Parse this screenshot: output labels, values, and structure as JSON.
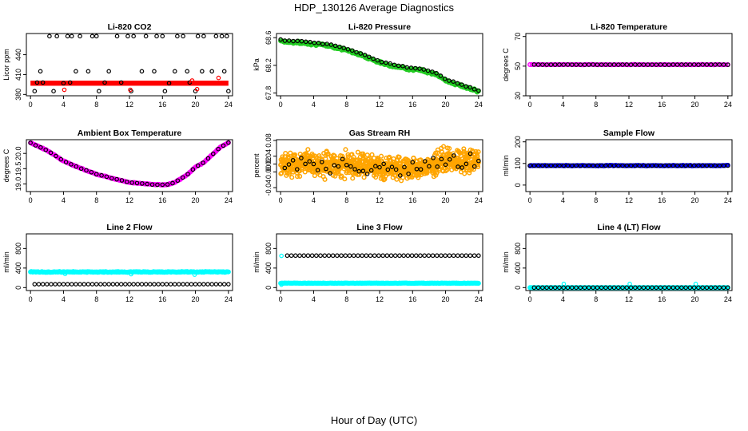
{
  "page": {
    "title": "HDP_130126  Average Diagnostics",
    "xlabel": "Hour of Day (UTC)"
  },
  "colors": {
    "black": "#000000",
    "red": "#ff0000",
    "green": "#22cc22",
    "magenta": "#ff00ff",
    "orange": "#ffa500",
    "blue": "#0000ff",
    "cyan": "#00ffff"
  },
  "chart_data": [
    {
      "id": "co2",
      "type": "scatter",
      "title": "Li-820 CO2",
      "ylabel": "Licor ppm",
      "xlim": [
        -0.5,
        24.5
      ],
      "ylim": [
        378,
        472
      ],
      "xticks": [
        0,
        4,
        8,
        12,
        16,
        20,
        24
      ],
      "yticks": [
        380,
        410,
        440
      ],
      "series": [
        {
          "color": "red",
          "kind": "band",
          "x0": 0,
          "x1": 24,
          "y": 397
        },
        {
          "color": "black",
          "kind": "points",
          "x": [
            0.5,
            1.5,
            2.3,
            3.2,
            4.0,
            4.5,
            5.0,
            6.0,
            7.5,
            8.0,
            9.0,
            10.5,
            11.8,
            12.5,
            14.0,
            15.3,
            16.0,
            16.8,
            17.8,
            18.5,
            19.3,
            20.3,
            21.0,
            22.5,
            23.2,
            23.8,
            1.2,
            5.5,
            7.0,
            9.5,
            11.0,
            13.5,
            15.0,
            17.5,
            19.0,
            20.8,
            22.0,
            23.5,
            0.8,
            2.8,
            4.8,
            8.3,
            12.2,
            16.3,
            20.0,
            24.0
          ],
          "y": [
            385,
            398,
            468,
            468,
            397,
            468,
            468,
            468,
            468,
            468,
            398,
            468,
            468,
            468,
            468,
            468,
            468,
            397,
            468,
            468,
            398,
            468,
            468,
            468,
            468,
            468,
            415,
            415,
            415,
            415,
            398,
            415,
            415,
            415,
            415,
            415,
            415,
            415,
            398,
            385,
            398,
            385,
            385,
            385,
            385,
            385
          ]
        },
        {
          "color": "red",
          "kind": "points",
          "x": [
            4.1,
            12.1,
            19.6,
            20.2,
            22.8
          ],
          "y": [
            387,
            387,
            401,
            388,
            405
          ]
        }
      ]
    },
    {
      "id": "pressure",
      "type": "scatter",
      "title": "Li-820 Pressure",
      "ylabel": "kPa",
      "xlim": [
        -0.5,
        24.5
      ],
      "ylim": [
        67.76,
        68.66
      ],
      "xticks": [
        0,
        4,
        8,
        12,
        16,
        20,
        24
      ],
      "yticks": [
        67.8,
        68.2,
        68.6
      ],
      "profile": {
        "x": [
          0,
          0.5,
          2,
          4,
          6,
          8,
          10,
          12,
          14,
          16,
          17,
          18,
          19,
          20,
          22,
          24
        ],
        "y": [
          68.58,
          68.56,
          68.55,
          68.53,
          68.5,
          68.44,
          68.36,
          68.26,
          68.2,
          68.16,
          68.15,
          68.12,
          68.08,
          68.0,
          67.92,
          67.84
        ]
      },
      "series": [
        {
          "color": "green",
          "kind": "dense",
          "n": 280,
          "noise": 0.025,
          "dy": -0.02
        },
        {
          "color": "black",
          "kind": "sampled",
          "n": 48,
          "noise": 0.008
        }
      ]
    },
    {
      "id": "ctemp",
      "type": "scatter",
      "title": "Li-820 Temperature",
      "ylabel": "degrees C",
      "xlim": [
        -0.5,
        24.5
      ],
      "ylim": [
        30,
        72
      ],
      "xticks": [
        0,
        4,
        8,
        12,
        16,
        20,
        24
      ],
      "yticks": [
        30,
        50,
        70
      ],
      "profile": {
        "x": [
          0,
          24
        ],
        "y": [
          51,
          51
        ]
      },
      "series": [
        {
          "color": "magenta",
          "kind": "dense",
          "n": 100,
          "noise": 0.2
        },
        {
          "color": "black",
          "kind": "sampled",
          "n": 47,
          "noise": 0.1,
          "x0": 0.5
        }
      ]
    },
    {
      "id": "btemp",
      "type": "scatter",
      "title": "Ambient Box Temperature",
      "ylabel": "degrees C",
      "xlim": [
        -0.5,
        24.5
      ],
      "ylim": [
        18.75,
        20.45
      ],
      "xticks": [
        0,
        4,
        8,
        12,
        16,
        20,
        24
      ],
      "yticks": [
        19.0,
        19.5,
        20.0
      ],
      "profile": {
        "x": [
          0,
          2,
          4,
          6,
          8,
          10,
          12,
          14,
          15,
          16.5,
          17.5,
          19,
          20,
          21,
          23,
          24
        ],
        "y": [
          20.35,
          20.1,
          19.75,
          19.52,
          19.32,
          19.18,
          19.05,
          19.0,
          18.98,
          18.97,
          19.05,
          19.3,
          19.55,
          19.7,
          20.2,
          20.35
        ]
      },
      "series": [
        {
          "color": "magenta",
          "kind": "dense",
          "n": 240,
          "noise": 0.02
        },
        {
          "color": "black",
          "kind": "sampled",
          "n": 40,
          "noise": 0.01
        }
      ]
    },
    {
      "id": "rh",
      "type": "scatter",
      "title": "Gas Stream RH",
      "ylabel": "percent",
      "xlim": [
        -0.5,
        24.5
      ],
      "ylim": [
        -0.05,
        0.082
      ],
      "xticks": [
        0,
        4,
        8,
        12,
        16,
        20,
        24
      ],
      "yticks": [
        -0.04,
        0.0,
        0.02,
        0.04,
        0.08
      ],
      "profile": {
        "x": [
          0,
          4,
          8,
          12,
          16,
          18,
          20,
          24
        ],
        "y": [
          0.02,
          0.02,
          0.017,
          0.013,
          0.01,
          0.015,
          0.03,
          0.028
        ]
      },
      "series": [
        {
          "color": "orange",
          "kind": "dense",
          "n": 900,
          "noise": 0.042
        },
        {
          "color": "black",
          "kind": "sampled",
          "n": 48,
          "noise": 0.03,
          "x0": 0.5
        }
      ]
    },
    {
      "id": "sflow",
      "type": "scatter",
      "title": "Sample Flow",
      "ylabel": "ml/min",
      "xlim": [
        -0.5,
        24.5
      ],
      "ylim": [
        -30,
        210
      ],
      "xticks": [
        0,
        4,
        8,
        12,
        16,
        20,
        24
      ],
      "yticks": [
        0,
        100,
        200
      ],
      "profile": {
        "x": [
          0,
          24
        ],
        "y": [
          90,
          90
        ]
      },
      "series": [
        {
          "color": "blue",
          "kind": "dense",
          "n": 160,
          "noise": 2
        },
        {
          "color": "black",
          "kind": "sampled",
          "n": 48,
          "noise": 0.5
        }
      ]
    },
    {
      "id": "l2",
      "type": "scatter",
      "title": "Line 2 Flow",
      "ylabel": "ml/min",
      "xlim": [
        -0.5,
        24.5
      ],
      "ylim": [
        -60,
        1100
      ],
      "xticks": [
        0,
        4,
        8,
        12,
        16,
        20,
        24
      ],
      "yticks": [
        0,
        400,
        800
      ],
      "profile": {
        "x": [
          0,
          24
        ],
        "y": [
          320,
          320
        ]
      },
      "series": [
        {
          "color": "cyan",
          "kind": "dense",
          "n": 260,
          "noise": 12
        },
        {
          "color": "cyan",
          "kind": "points",
          "x": [
            4.2,
            12.2,
            19.9
          ],
          "y": [
            280,
            275,
            265
          ]
        },
        {
          "color": "black",
          "kind": "flat",
          "n": 48,
          "y": 70,
          "x0": 0.5
        }
      ]
    },
    {
      "id": "l3",
      "type": "scatter",
      "title": "Line 3 Flow",
      "ylabel": "ml/min",
      "xlim": [
        -0.5,
        24.5
      ],
      "ylim": [
        -60,
        1100
      ],
      "xticks": [
        0,
        4,
        8,
        12,
        16,
        20,
        24
      ],
      "yticks": [
        0,
        400,
        800
      ],
      "profile": {
        "x": [
          0,
          24
        ],
        "y": [
          90,
          90
        ]
      },
      "series": [
        {
          "color": "cyan",
          "kind": "dense",
          "n": 260,
          "noise": 6
        },
        {
          "color": "cyan",
          "kind": "points",
          "x": [
            0.1,
            0.1
          ],
          "y": [
            650,
            60
          ]
        },
        {
          "color": "black",
          "kind": "flat",
          "n": 47,
          "y": 655,
          "x0": 0.8
        }
      ]
    },
    {
      "id": "l4",
      "type": "scatter",
      "title": "Line 4 (LT) Flow",
      "ylabel": "ml/min",
      "xlim": [
        -0.5,
        24.5
      ],
      "ylim": [
        -60,
        1100
      ],
      "xticks": [
        0,
        4,
        8,
        12,
        16,
        20,
        24
      ],
      "yticks": [
        0,
        400,
        800
      ],
      "profile": {
        "x": [
          0,
          24
        ],
        "y": [
          0,
          0
        ]
      },
      "series": [
        {
          "color": "cyan",
          "kind": "dense",
          "n": 220,
          "noise": 1
        },
        {
          "color": "cyan",
          "kind": "points",
          "x": [
            0.1,
            4.1,
            12.1,
            20.1
          ],
          "y": [
            0,
            75,
            75,
            75
          ]
        },
        {
          "color": "black",
          "kind": "flat",
          "n": 47,
          "y": 0,
          "x0": 0.5
        }
      ]
    }
  ]
}
